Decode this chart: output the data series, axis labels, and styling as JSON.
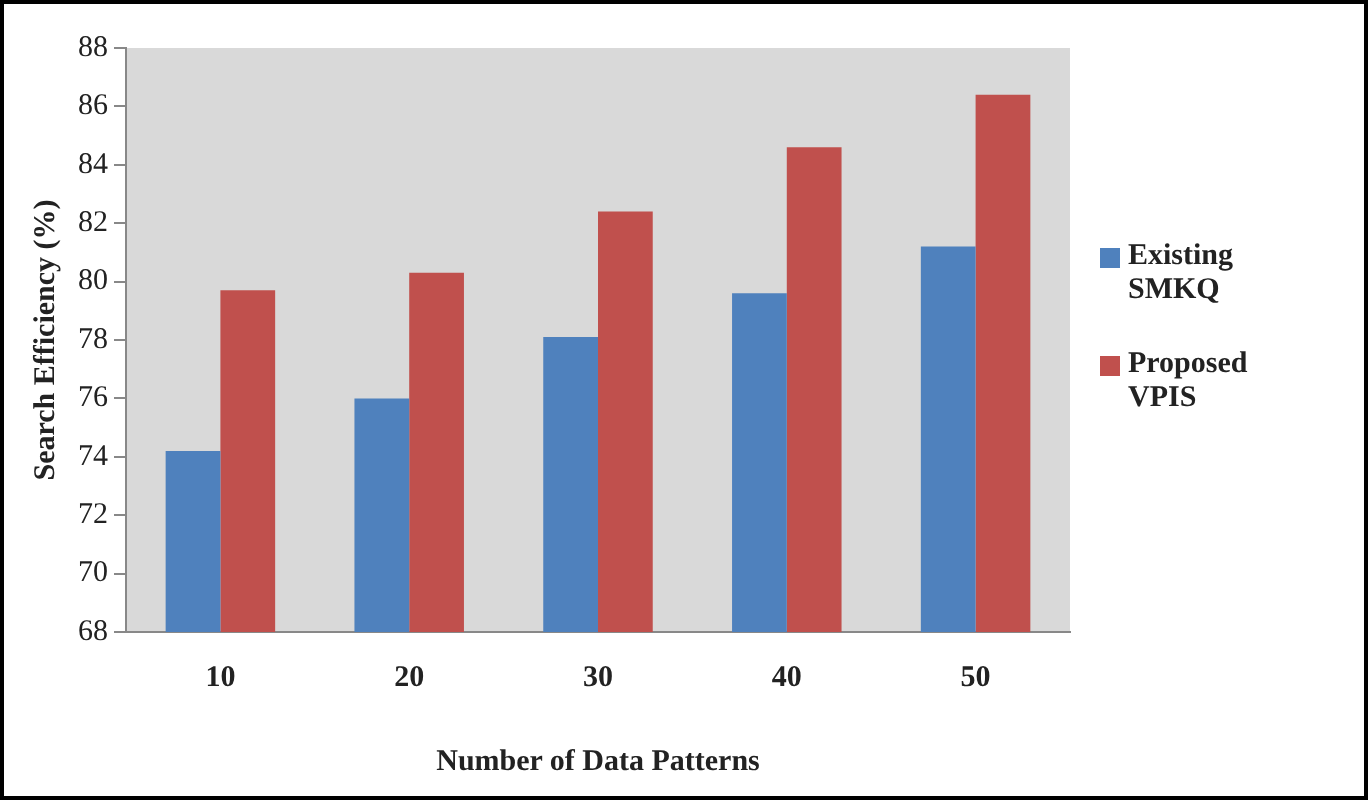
{
  "chart_data": {
    "type": "bar",
    "xlabel": "Number of Data Patterns",
    "ylabel": "Search Efficiency (%)",
    "categories": [
      "10",
      "20",
      "30",
      "40",
      "50"
    ],
    "series": [
      {
        "name": "Existing SMKQ",
        "color": "#4f81bd",
        "values": [
          74.2,
          76.0,
          78.1,
          79.6,
          81.2
        ]
      },
      {
        "name": "Proposed VPIS",
        "color": "#c0504d",
        "values": [
          79.7,
          80.3,
          82.4,
          84.6,
          86.4
        ]
      }
    ],
    "ylim": [
      68,
      88
    ],
    "yticks": [
      68,
      70,
      72,
      74,
      76,
      78,
      80,
      82,
      84,
      86,
      88
    ],
    "grid": false,
    "legend": "right"
  }
}
